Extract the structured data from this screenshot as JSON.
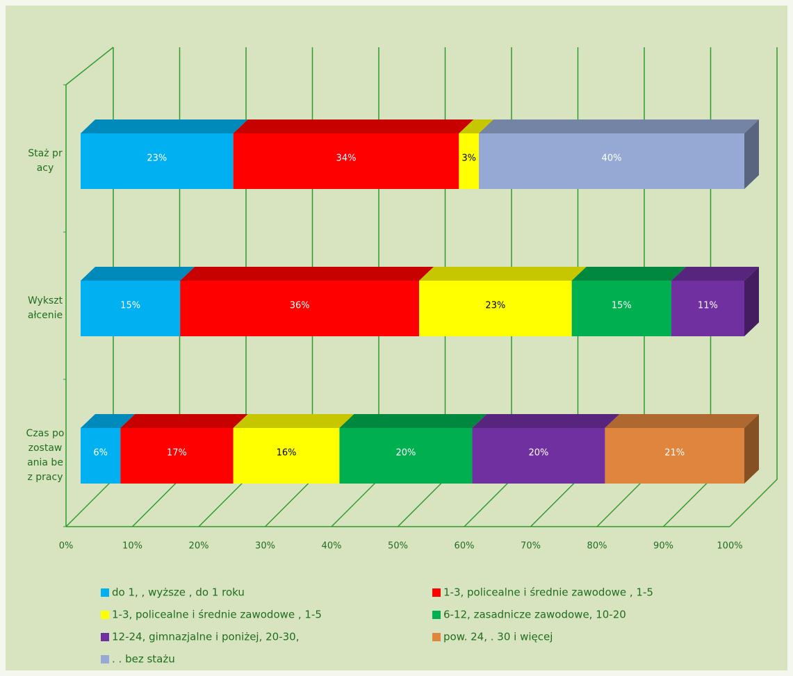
{
  "chart_data": {
    "type": "bar",
    "stacked": true,
    "orientation": "horizontal",
    "categories": [
      "Staż pracy",
      "Wykształcenie",
      "Czas pozostawania bez pracy"
    ],
    "series": [
      {
        "name": "do 1,  , wyższe , do 1 roku",
        "color": "#00b0f0",
        "values": [
          23,
          15,
          6
        ],
        "value_labels": [
          "23%",
          "15%",
          "6%"
        ]
      },
      {
        "name": "1-3,  policealne i średnie zawodowe , 1-5",
        "color": "#ff0000",
        "values": [
          34,
          36,
          17
        ],
        "value_labels": [
          "34%",
          "36%",
          "17%"
        ]
      },
      {
        "name": "1-3,  policealne i średnie zawodowe , 1-5",
        "color": "#ffff00",
        "values": [
          3,
          23,
          16
        ],
        "value_labels": [
          "3%",
          "23%",
          "16%"
        ]
      },
      {
        "name": "6-12,  zasadnicze zawodowe,  10-20",
        "color": "#00b050",
        "values": [
          null,
          15,
          20
        ],
        "value_labels": [
          null,
          "15%",
          "20%"
        ]
      },
      {
        "name": "12-24, gimnazjalne i poniżej,  20-30,",
        "color": "#7030a0",
        "values": [
          null,
          11,
          20
        ],
        "value_labels": [
          null,
          "11%",
          "20%"
        ]
      },
      {
        "name": "pow. 24, . 30 i więcej",
        "color": "#e0853d",
        "values": [
          null,
          null,
          21
        ],
        "value_labels": [
          null,
          null,
          "21%"
        ]
      },
      {
        "name": ". . bez stażu",
        "color": "#95a9d4",
        "values": [
          40,
          null,
          null
        ],
        "value_labels": [
          "40%",
          null,
          null
        ]
      }
    ],
    "xlim": [
      0,
      100
    ],
    "xticks": [
      {
        "value": 0,
        "label": "0%"
      },
      {
        "value": 10,
        "label": "10%"
      },
      {
        "value": 20,
        "label": "20%"
      },
      {
        "value": 30,
        "label": "30%"
      },
      {
        "value": 40,
        "label": "40%"
      },
      {
        "value": 50,
        "label": "50%"
      },
      {
        "value": 60,
        "label": "60%"
      },
      {
        "value": 70,
        "label": "70%"
      },
      {
        "value": 80,
        "label": "80%"
      },
      {
        "value": 90,
        "label": "90%"
      },
      {
        "value": 100,
        "label": "100%"
      }
    ],
    "grid": true,
    "grid_color": "#2e9a2e",
    "legend": "bottom"
  }
}
